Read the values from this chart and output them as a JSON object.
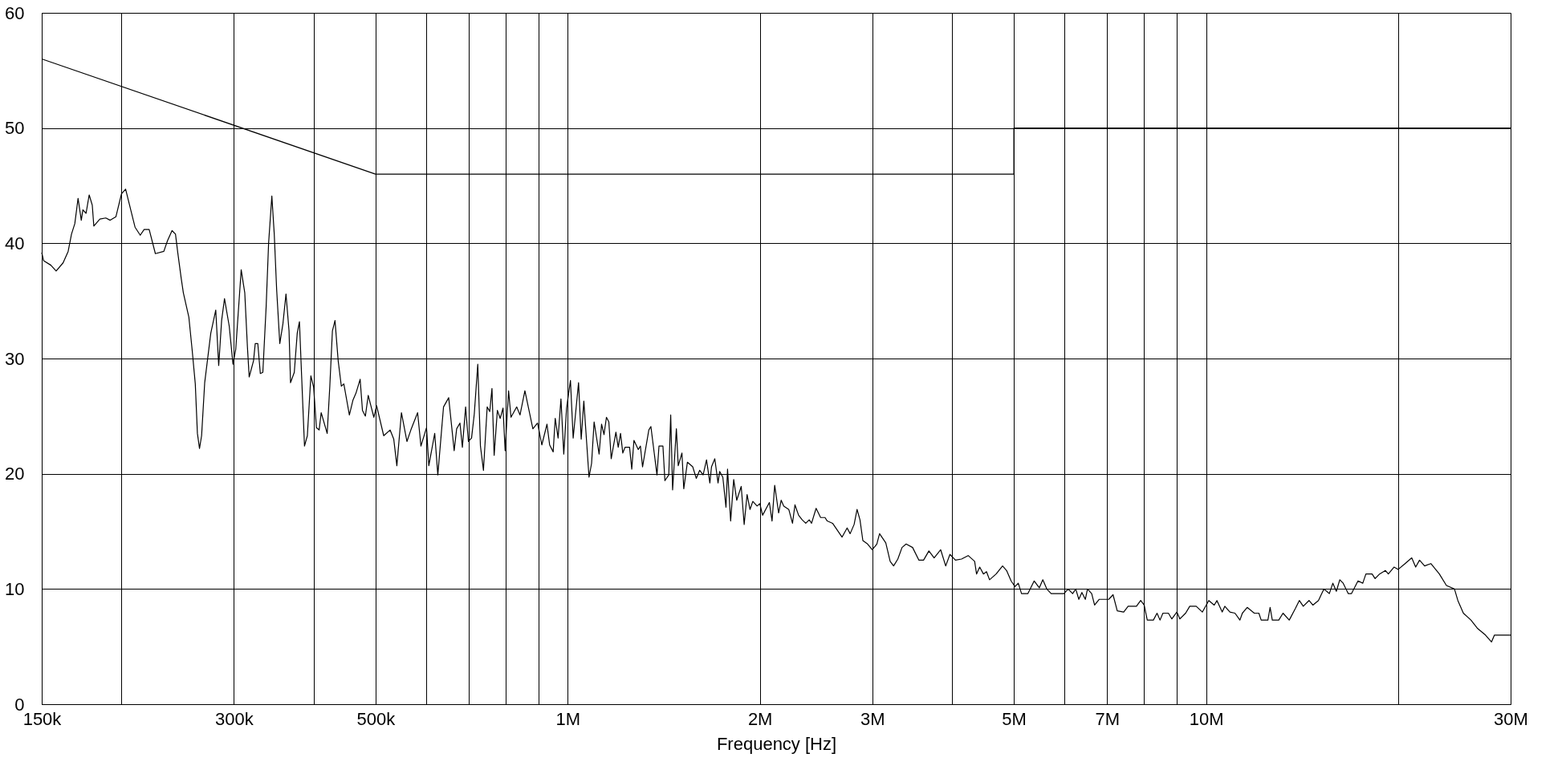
{
  "chart_data": {
    "type": "line",
    "xlabel": "Frequency [Hz]",
    "log": "x",
    "grid": true,
    "legend": false,
    "line_style": "solid",
    "marker": "none",
    "xlim": [
      150000,
      30000000
    ],
    "ylim": [
      0,
      60
    ],
    "xticks": [
      {
        "value": 150000,
        "label": "150k"
      },
      {
        "value": 200000,
        "label": null
      },
      {
        "value": 300000,
        "label": "300k"
      },
      {
        "value": 400000,
        "label": null
      },
      {
        "value": 500000,
        "label": "500k"
      },
      {
        "value": 600000,
        "label": null
      },
      {
        "value": 700000,
        "label": null
      },
      {
        "value": 800000,
        "label": null
      },
      {
        "value": 900000,
        "label": null
      },
      {
        "value": 1000000,
        "label": "1M"
      },
      {
        "value": 2000000,
        "label": "2M"
      },
      {
        "value": 3000000,
        "label": "3M"
      },
      {
        "value": 4000000,
        "label": null
      },
      {
        "value": 5000000,
        "label": "5M"
      },
      {
        "value": 6000000,
        "label": null
      },
      {
        "value": 7000000,
        "label": "7M"
      },
      {
        "value": 8000000,
        "label": null
      },
      {
        "value": 9000000,
        "label": null
      },
      {
        "value": 10000000,
        "label": "10M"
      },
      {
        "value": 20000000,
        "label": null
      },
      {
        "value": 30000000,
        "label": "30M"
      }
    ],
    "yticks": [
      0,
      10,
      20,
      30,
      40,
      50,
      60
    ],
    "series": [
      {
        "color": "#000000",
        "x": [
          150000,
          500000,
          5000000,
          5000000,
          30000000
        ],
        "values": [
          56,
          46,
          46,
          50,
          50
        ]
      },
      {
        "color": "#000000",
        "x": [
          150000,
          151000,
          155000,
          158000,
          162000,
          165000,
          167000,
          169000,
          171000,
          173000,
          174000,
          176000,
          178000,
          180000,
          181000,
          185000,
          189000,
          192000,
          196000,
          200000,
          203000,
          207000,
          210000,
          214000,
          217000,
          221000,
          226000,
          233000,
          236000,
          240000,
          243000,
          245000,
          248000,
          250000,
          255000,
          258000,
          261000,
          263000,
          265000,
          267000,
          270000,
          276000,
          281000,
          284000,
          287000,
          290000,
          295000,
          299000,
          302000,
          308000,
          312000,
          315000,
          317000,
          322000,
          324000,
          327000,
          330000,
          333000,
          337000,
          340000,
          344000,
          347000,
          350000,
          354000,
          358000,
          362000,
          366000,
          368000,
          373000,
          377000,
          380000,
          383000,
          387000,
          391000,
          396000,
          400000,
          404000,
          408000,
          411000,
          420000,
          424000,
          428000,
          432000,
          437000,
          442000,
          446000,
          455000,
          461000,
          466000,
          473000,
          477000,
          482000,
          487000,
          497000,
          502000,
          515000,
          527000,
          534000,
          540000,
          549000,
          560000,
          568000,
          582000,
          589000,
          601000,
          606000,
          619000,
          626000,
          639000,
          651000,
          664000,
          670000,
          678000,
          684000,
          692000,
          699000,
          707000,
          714000,
          723000,
          730000,
          738000,
          748000,
          755000,
          761000,
          767000,
          776000,
          784000,
          792000,
          798000,
          808000,
          815000,
          832000,
          842000,
          857000,
          882000,
          897000,
          911000,
          928000,
          937000,
          949000,
          956000,
          966000,
          976000,
          986000,
          996000,
          1010000,
          1020000,
          1040000,
          1050000,
          1060000,
          1080000,
          1090000,
          1100000,
          1120000,
          1130000,
          1140000,
          1150000,
          1160000,
          1170000,
          1190000,
          1200000,
          1210000,
          1220000,
          1230000,
          1250000,
          1260000,
          1270000,
          1290000,
          1300000,
          1310000,
          1340000,
          1350000,
          1380000,
          1390000,
          1410000,
          1420000,
          1440000,
          1450000,
          1460000,
          1480000,
          1490000,
          1510000,
          1520000,
          1540000,
          1570000,
          1590000,
          1610000,
          1630000,
          1650000,
          1670000,
          1680000,
          1700000,
          1720000,
          1730000,
          1750000,
          1770000,
          1780000,
          1800000,
          1820000,
          1840000,
          1870000,
          1890000,
          1910000,
          1930000,
          1950000,
          1980000,
          2000000,
          2020000,
          2070000,
          2090000,
          2110000,
          2140000,
          2160000,
          2180000,
          2220000,
          2250000,
          2270000,
          2300000,
          2330000,
          2360000,
          2390000,
          2410000,
          2450000,
          2490000,
          2530000,
          2550000,
          2600000,
          2690000,
          2740000,
          2770000,
          2810000,
          2840000,
          2870000,
          2900000,
          2950000,
          3000000,
          3050000,
          3080000,
          3150000,
          3200000,
          3240000,
          3290000,
          3340000,
          3390000,
          3470000,
          3550000,
          3610000,
          3680000,
          3750000,
          3840000,
          3910000,
          3970000,
          4050000,
          4140000,
          4240000,
          4340000,
          4370000,
          4420000,
          4480000,
          4530000,
          4580000,
          4690000,
          4800000,
          4870000,
          4950000,
          5020000,
          5080000,
          5140000,
          5260000,
          5380000,
          5480000,
          5550000,
          5630000,
          5720000,
          5990000,
          6080000,
          6180000,
          6250000,
          6320000,
          6390000,
          6470000,
          6520000,
          6620000,
          6690000,
          6800000,
          7040000,
          7150000,
          7260000,
          7430000,
          7550000,
          7780000,
          7900000,
          8000000,
          8090000,
          8270000,
          8380000,
          8470000,
          8560000,
          8730000,
          8840000,
          9000000,
          9100000,
          9290000,
          9430000,
          9650000,
          9870000,
          10100000,
          10300000,
          10400000,
          10600000,
          10700000,
          10900000,
          11100000,
          11300000,
          11400000,
          11600000,
          11900000,
          12100000,
          12200000,
          12500000,
          12600000,
          12700000,
          13000000,
          13200000,
          13500000,
          13800000,
          14000000,
          14200000,
          14500000,
          14700000,
          15000000,
          15300000,
          15600000,
          15800000,
          16000000,
          16200000,
          16400000,
          16700000,
          16900000,
          17300000,
          17600000,
          17800000,
          18200000,
          18400000,
          18700000,
          19100000,
          19300000,
          19700000,
          20000000,
          20500000,
          21000000,
          21300000,
          21600000,
          22000000,
          22500000,
          23200000,
          23800000,
          24500000,
          24800000,
          25300000,
          26000000,
          26600000,
          27400000,
          28000000,
          28300000,
          30000000
        ],
        "values": [
          39.2,
          38.5,
          38.1,
          37.6,
          38.3,
          39.3,
          40.8,
          41.7,
          43.9,
          42.0,
          42.9,
          42.6,
          44.2,
          43.3,
          41.5,
          42.1,
          42.2,
          42.0,
          42.3,
          44.3,
          44.7,
          42.8,
          41.4,
          40.7,
          41.2,
          41.2,
          39.1,
          39.3,
          40.2,
          41.1,
          40.8,
          39.2,
          37.0,
          35.7,
          33.6,
          30.8,
          27.8,
          23.5,
          22.2,
          23.3,
          27.9,
          32.2,
          34.2,
          29.4,
          33.3,
          35.2,
          32.8,
          29.5,
          30.8,
          37.7,
          35.7,
          31.0,
          28.4,
          29.8,
          31.3,
          31.3,
          28.7,
          28.8,
          34.5,
          40.0,
          44.1,
          40.8,
          36.0,
          31.3,
          33.0,
          35.6,
          32.4,
          27.9,
          28.8,
          32.2,
          33.2,
          28.5,
          22.4,
          23.3,
          28.5,
          27.5,
          24.0,
          23.8,
          25.3,
          23.5,
          27.6,
          32.4,
          33.3,
          29.8,
          27.6,
          27.8,
          25.1,
          26.4,
          27.0,
          28.2,
          25.5,
          25.0,
          26.8,
          24.9,
          25.9,
          23.3,
          23.8,
          23.0,
          20.7,
          25.3,
          22.8,
          23.8,
          25.3,
          22.4,
          24.0,
          20.7,
          23.5,
          19.9,
          25.8,
          26.6,
          22.0,
          23.9,
          24.4,
          22.3,
          25.8,
          22.8,
          23.1,
          25.2,
          29.5,
          22.4,
          20.3,
          25.8,
          25.4,
          27.4,
          21.6,
          25.5,
          24.8,
          25.7,
          22.0,
          27.2,
          24.9,
          25.8,
          25.1,
          27.2,
          23.9,
          24.4,
          22.5,
          24.3,
          22.5,
          21.9,
          24.8,
          23.1,
          26.5,
          21.7,
          25.7,
          28.1,
          23.1,
          27.9,
          23.0,
          26.3,
          19.7,
          20.9,
          24.5,
          21.7,
          24.3,
          23.4,
          24.9,
          24.5,
          21.3,
          23.6,
          22.3,
          23.5,
          21.8,
          22.3,
          22.3,
          20.4,
          22.9,
          22.1,
          22.4,
          20.6,
          23.8,
          24.1,
          19.9,
          22.4,
          22.4,
          19.4,
          19.9,
          25.1,
          18.6,
          23.9,
          20.7,
          21.8,
          18.7,
          21.0,
          20.6,
          19.6,
          20.3,
          19.9,
          21.2,
          19.2,
          20.6,
          21.3,
          19.2,
          20.2,
          19.7,
          17.1,
          20.4,
          15.9,
          19.5,
          17.7,
          18.9,
          15.6,
          18.2,
          16.9,
          17.6,
          17.2,
          17.4,
          16.4,
          17.5,
          15.9,
          19.0,
          16.6,
          17.7,
          17.2,
          16.9,
          15.7,
          17.3,
          16.4,
          16.0,
          15.7,
          16.0,
          15.7,
          17.0,
          16.2,
          16.2,
          15.9,
          15.7,
          14.5,
          15.3,
          14.8,
          15.6,
          16.9,
          16.0,
          14.2,
          13.9,
          13.4,
          13.9,
          14.8,
          14.0,
          12.4,
          12.0,
          12.6,
          13.6,
          13.9,
          13.6,
          12.5,
          12.5,
          13.3,
          12.7,
          13.4,
          12.0,
          13.0,
          12.5,
          12.6,
          12.9,
          12.4,
          11.3,
          11.9,
          11.3,
          11.5,
          10.8,
          11.3,
          12.0,
          11.6,
          10.7,
          10.2,
          10.5,
          9.6,
          9.6,
          10.7,
          10.1,
          10.8,
          10.0,
          9.6,
          9.6,
          10.0,
          9.6,
          10.0,
          9.1,
          9.7,
          9.1,
          10.0,
          9.6,
          8.6,
          9.1,
          9.1,
          9.5,
          8.1,
          8.0,
          8.5,
          8.5,
          9.0,
          8.6,
          7.3,
          7.3,
          7.9,
          7.3,
          7.9,
          7.9,
          7.4,
          8.0,
          7.4,
          7.9,
          8.5,
          8.5,
          8.0,
          9.0,
          8.6,
          9.0,
          8.0,
          8.5,
          8.0,
          7.9,
          7.3,
          7.9,
          8.4,
          7.9,
          7.9,
          7.3,
          7.3,
          8.4,
          7.3,
          7.3,
          7.9,
          7.3,
          8.3,
          9.0,
          8.5,
          9.0,
          8.6,
          9.0,
          10.0,
          9.6,
          10.5,
          9.8,
          10.8,
          10.5,
          9.6,
          9.6,
          10.7,
          10.5,
          11.3,
          11.3,
          10.9,
          11.3,
          11.6,
          11.3,
          11.9,
          11.7,
          12.2,
          12.7,
          11.9,
          12.5,
          12.0,
          12.2,
          11.3,
          10.3,
          10.0,
          9.0,
          7.9,
          7.3,
          6.6,
          6.0,
          5.4,
          6.0,
          6.0
        ]
      }
    ]
  }
}
